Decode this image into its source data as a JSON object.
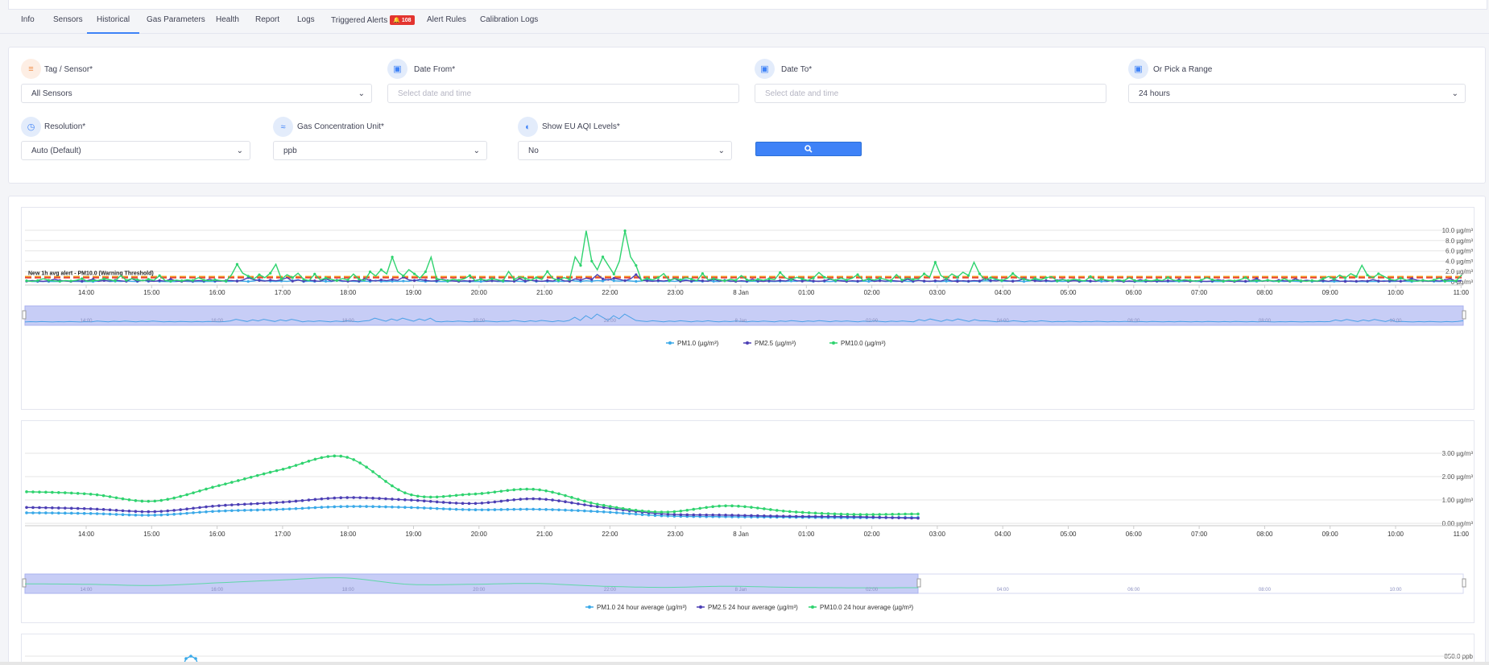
{
  "tabs": [
    {
      "label": "Info"
    },
    {
      "label": "Sensors"
    },
    {
      "label": "Historical"
    },
    {
      "label": "Gas Parameters"
    },
    {
      "label": "Health"
    },
    {
      "label": "Report"
    },
    {
      "label": "Logs"
    },
    {
      "label": "Triggered Alerts",
      "badge": "108"
    },
    {
      "label": "Alert Rules"
    },
    {
      "label": "Calibration Logs"
    }
  ],
  "active_tab": "Historical",
  "filters": {
    "tag_sensor": {
      "label": "Tag / Sensor*",
      "value": "All Sensors"
    },
    "date_from": {
      "label": "Date From*",
      "placeholder": "Select date and time"
    },
    "date_to": {
      "label": "Date To*",
      "placeholder": "Select date and time"
    },
    "range": {
      "label": "Or Pick a Range",
      "value": "24 hours"
    },
    "resolution": {
      "label": "Resolution*",
      "value": "Auto (Default)"
    },
    "unit": {
      "label": "Gas Concentration Unit*",
      "value": "ppb"
    },
    "eu_aqi": {
      "label": "Show EU AQI Levels*",
      "value": "No"
    }
  },
  "colors": {
    "pm1": "#3aa9e8",
    "pm25": "#4c3fb5",
    "pm10": "#2fd36f",
    "accent": "#3e82f7",
    "threshold_red": "#e84c3d",
    "threshold_orange": "#f5a623"
  },
  "x_ticks": [
    "14:00",
    "15:00",
    "16:00",
    "17:00",
    "18:00",
    "19:00",
    "20:00",
    "21:00",
    "22:00",
    "23:00",
    "8 Jan",
    "01:00",
    "02:00",
    "03:00",
    "04:00",
    "05:00",
    "06:00",
    "07:00",
    "08:00",
    "09:00",
    "10:00",
    "11:00"
  ],
  "navigator_ticks": [
    "14:00",
    "16:00",
    "18:00",
    "20:00",
    "22:00",
    "8 Jan",
    "02:00",
    "04:00",
    "06:00",
    "08:00",
    "10:00"
  ],
  "chart_data": [
    {
      "type": "line",
      "y_ticks": [
        "10.0 µg/m³",
        "8.0 µg/m³",
        "6.0 µg/m³",
        "4.0 µg/m³",
        "2.0 µg/m³",
        "0 µg/m³"
      ],
      "ylim": [
        0,
        10
      ],
      "threshold_label": "New 1h avg alert - PM10.0 (Warning Threshold)",
      "thresholds": [
        0.8,
        1.0
      ],
      "legend": [
        "PM1.0 (µg/m³)",
        "PM2.5 (µg/m³)",
        "PM10.0 (µg/m³)"
      ],
      "series": [
        {
          "name": "PM1.0 (µg/m³)",
          "values": [
            0.2,
            0.3,
            0.2,
            0.4,
            0.3,
            0.3,
            0.2,
            0.3,
            0.5,
            0.4,
            0.3,
            0.3,
            0.3,
            0.3,
            0.4,
            0.3,
            0.2,
            0.2,
            0.3,
            0.2,
            0.3,
            0.3
          ]
        },
        {
          "name": "PM2.5 (µg/m³)",
          "values": [
            0.5,
            0.6,
            0.5,
            0.8,
            0.6,
            0.9,
            0.5,
            0.6,
            1.4,
            0.6,
            0.5,
            0.5,
            0.5,
            0.5,
            0.6,
            0.5,
            0.4,
            0.4,
            0.6,
            0.4,
            0.6,
            0.5
          ]
        },
        {
          "name": "PM10.0 (µg/m³)",
          "values": [
            0.6,
            1.2,
            0.8,
            3.4,
            1.5,
            4.8,
            1.2,
            2.0,
            9.9,
            1.6,
            1.2,
            1.8,
            1.4,
            3.8,
            1.6,
            1.0,
            0.8,
            0.8,
            0.6,
            3.2,
            0.7,
            2.6
          ]
        }
      ]
    },
    {
      "type": "line",
      "y_ticks": [
        "3.00 µg/m³",
        "2.00 µg/m³",
        "1.00 µg/m³",
        "0.00 µg/m³"
      ],
      "ylim": [
        0,
        3
      ],
      "legend": [
        "PM1.0 24 hour average (µg/m³)",
        "PM2.5 24 hour average (µg/m³)",
        "PM10.0 24 hour average (µg/m³)"
      ],
      "series": [
        {
          "name": "PM1.0 24 hour average (µg/m³)",
          "values": [
            0.45,
            0.42,
            0.35,
            0.52,
            0.6,
            0.72,
            0.68,
            0.58,
            0.6,
            0.5,
            0.32,
            0.28,
            0.26,
            0.24,
            0.25
          ]
        },
        {
          "name": "PM2.5 24 hour average (µg/m³)",
          "values": [
            0.68,
            0.62,
            0.5,
            0.75,
            0.9,
            1.1,
            1.0,
            0.85,
            1.05,
            0.7,
            0.4,
            0.35,
            0.3,
            0.28,
            0.22
          ]
        },
        {
          "name": "PM10.0 24 hour average (µg/m³)",
          "values": [
            1.35,
            1.25,
            0.95,
            1.6,
            2.3,
            2.85,
            1.25,
            1.25,
            1.45,
            0.8,
            0.48,
            0.75,
            0.5,
            0.38,
            0.4
          ]
        }
      ]
    }
  ],
  "third_chart": {
    "y_tick": "850.0 ppb"
  }
}
